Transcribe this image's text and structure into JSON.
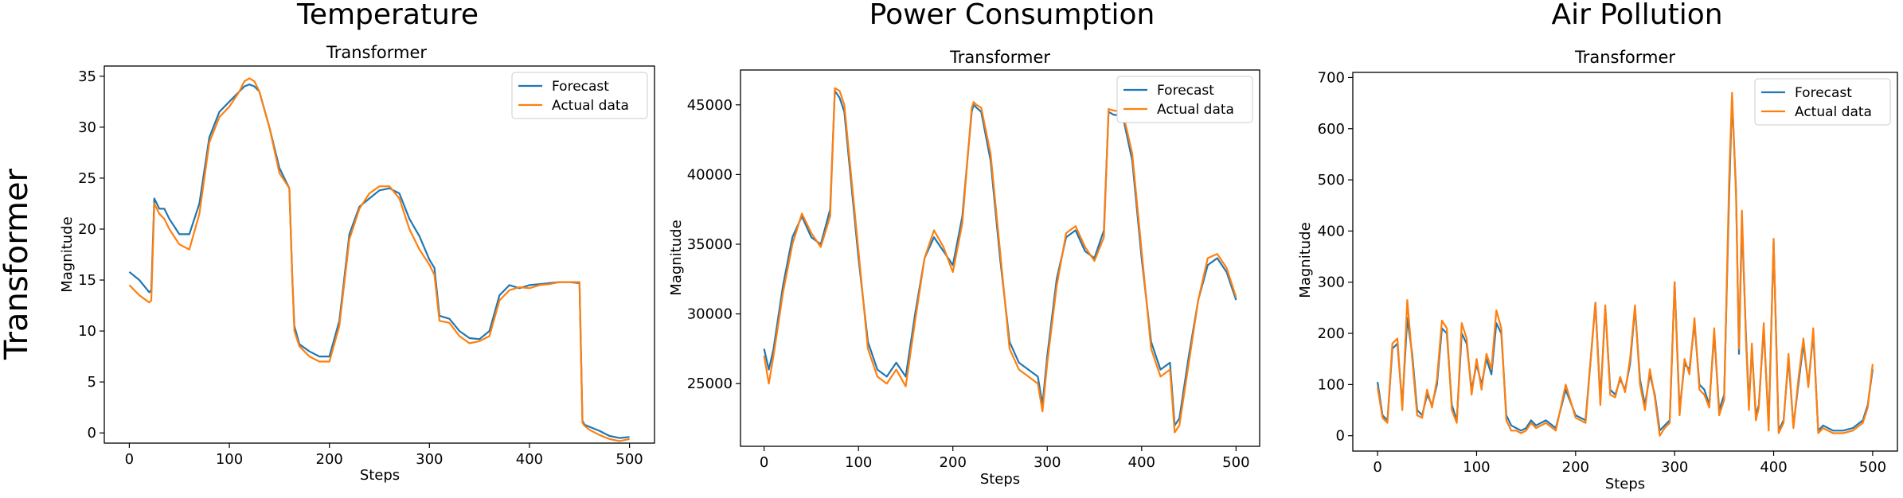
{
  "figure": {
    "row_label": "Transformer"
  },
  "colors": {
    "forecast": "#1f77b4",
    "actual": "#ff7f0e",
    "axes": "#000000",
    "background": "#ffffff"
  },
  "chart_data": [
    {
      "type": "line",
      "heading": "Temperature",
      "title": "Transformer",
      "xlabel": "Steps",
      "ylabel": "Magnitude",
      "xlim": [
        -25,
        525
      ],
      "ylim": [
        -1,
        36
      ],
      "xticks": [
        0,
        100,
        200,
        300,
        400,
        500
      ],
      "yticks": [
        0,
        5,
        10,
        15,
        20,
        25,
        30,
        35
      ],
      "grid": false,
      "legend": "top-right",
      "series": [
        {
          "name": "Forecast",
          "color": "#1f77b4",
          "x": [
            0,
            10,
            20,
            22,
            25,
            30,
            35,
            40,
            50,
            60,
            70,
            80,
            90,
            100,
            110,
            115,
            120,
            125,
            130,
            140,
            150,
            160,
            163,
            165,
            170,
            180,
            190,
            200,
            210,
            220,
            230,
            240,
            250,
            260,
            270,
            280,
            290,
            300,
            305,
            310,
            320,
            330,
            340,
            350,
            360,
            370,
            380,
            390,
            400,
            410,
            420,
            430,
            440,
            450,
            453,
            455,
            460,
            470,
            480,
            490,
            500
          ],
          "y": [
            15.8,
            15,
            13.8,
            14,
            23,
            22,
            22,
            21,
            19.5,
            19.5,
            22.5,
            29,
            31.5,
            32.5,
            33.5,
            34,
            34.2,
            34,
            33.5,
            30,
            26,
            24,
            15,
            10.5,
            8.7,
            8,
            7.5,
            7.5,
            11,
            19.5,
            22.2,
            23,
            23.8,
            24,
            23.5,
            21,
            19.3,
            17,
            16.2,
            11.5,
            11.2,
            10,
            9.3,
            9.2,
            10,
            13.5,
            14.5,
            14.2,
            14.5,
            14.6,
            14.7,
            14.8,
            14.8,
            14.7,
            1.2,
            0.8,
            0.6,
            0.2,
            -0.3,
            -0.5,
            -0.4
          ]
        },
        {
          "name": "Actual data",
          "color": "#ff7f0e",
          "x": [
            0,
            10,
            20,
            22,
            25,
            30,
            35,
            40,
            50,
            60,
            70,
            80,
            90,
            100,
            110,
            115,
            120,
            125,
            130,
            140,
            150,
            160,
            163,
            165,
            170,
            180,
            190,
            200,
            210,
            220,
            230,
            240,
            250,
            260,
            270,
            280,
            290,
            300,
            305,
            310,
            320,
            330,
            340,
            350,
            360,
            370,
            380,
            390,
            400,
            410,
            420,
            430,
            440,
            450,
            453,
            455,
            460,
            470,
            480,
            490,
            500
          ],
          "y": [
            14.5,
            13.5,
            12.8,
            13,
            22.5,
            21.5,
            21,
            20,
            18.5,
            18,
            21.5,
            28.5,
            31,
            32,
            33.5,
            34.5,
            34.8,
            34.5,
            33.5,
            30,
            25.5,
            24,
            15,
            10,
            8.5,
            7.5,
            7,
            7,
            10.5,
            19,
            22,
            23.5,
            24.2,
            24.2,
            23,
            20,
            18,
            16.5,
            15.5,
            11,
            10.8,
            9.5,
            8.8,
            9,
            9.5,
            13,
            14,
            14.3,
            14.2,
            14.5,
            14.6,
            14.8,
            14.8,
            14.8,
            1,
            0.7,
            0.3,
            -0.2,
            -0.6,
            -0.8,
            -0.6
          ]
        }
      ]
    },
    {
      "type": "line",
      "heading": "Power Consumption",
      "title": "Transformer",
      "xlabel": "Steps",
      "ylabel": "Magnitude",
      "xlim": [
        -25,
        525
      ],
      "ylim": [
        20500,
        47500
      ],
      "xticks": [
        0,
        100,
        200,
        300,
        400,
        500
      ],
      "yticks": [
        25000,
        30000,
        35000,
        40000,
        45000
      ],
      "grid": false,
      "legend": "top-right",
      "series": [
        {
          "name": "Forecast",
          "color": "#1f77b4",
          "x": [
            0,
            5,
            10,
            20,
            30,
            40,
            50,
            60,
            70,
            75,
            80,
            85,
            90,
            100,
            110,
            120,
            130,
            140,
            150,
            160,
            170,
            180,
            190,
            200,
            210,
            220,
            222,
            225,
            230,
            240,
            250,
            260,
            270,
            280,
            290,
            295,
            300,
            310,
            320,
            330,
            340,
            350,
            360,
            365,
            370,
            380,
            390,
            400,
            410,
            420,
            430,
            435,
            440,
            450,
            460,
            470,
            480,
            490,
            500
          ],
          "y": [
            27500,
            26000,
            27500,
            32000,
            35500,
            37000,
            35500,
            35000,
            37500,
            46000,
            45500,
            44500,
            41000,
            34000,
            28000,
            26000,
            25500,
            26500,
            25500,
            30000,
            34000,
            35500,
            34500,
            33500,
            37000,
            44500,
            45000,
            44800,
            44500,
            41000,
            34000,
            28000,
            26500,
            26000,
            25500,
            23500,
            27000,
            32500,
            35500,
            36000,
            34500,
            34000,
            36000,
            44500,
            44300,
            44200,
            41000,
            34000,
            28000,
            26000,
            26500,
            22000,
            22500,
            27000,
            31000,
            33500,
            34000,
            33000,
            31000
          ]
        },
        {
          "name": "Actual data",
          "color": "#ff7f0e",
          "x": [
            0,
            5,
            10,
            20,
            30,
            40,
            50,
            60,
            70,
            75,
            80,
            85,
            90,
            100,
            110,
            120,
            130,
            140,
            150,
            160,
            170,
            180,
            190,
            200,
            210,
            220,
            222,
            225,
            230,
            240,
            250,
            260,
            270,
            280,
            290,
            295,
            300,
            310,
            320,
            330,
            340,
            350,
            360,
            365,
            370,
            380,
            390,
            400,
            410,
            420,
            430,
            435,
            440,
            450,
            460,
            470,
            480,
            490,
            500
          ],
          "y": [
            27000,
            25000,
            27000,
            31500,
            35000,
            37200,
            35800,
            34800,
            37000,
            46200,
            46000,
            45000,
            41500,
            34500,
            27500,
            25500,
            25000,
            26000,
            24800,
            29500,
            34000,
            36000,
            34800,
            33000,
            36500,
            44800,
            45200,
            45000,
            44800,
            41500,
            34500,
            27500,
            26000,
            25500,
            25000,
            23000,
            26500,
            32000,
            35800,
            36300,
            34800,
            33800,
            35500,
            44700,
            44600,
            44500,
            41500,
            34500,
            27500,
            25500,
            26000,
            21500,
            22000,
            26500,
            31000,
            34000,
            34300,
            33300,
            31200
          ]
        }
      ]
    },
    {
      "type": "line",
      "heading": "Air Pollution",
      "title": "Transformer",
      "xlabel": "Steps",
      "ylabel": "Magnitude",
      "xlim": [
        -25,
        525
      ],
      "ylim": [
        -30,
        710
      ],
      "xticks": [
        0,
        100,
        200,
        300,
        400,
        500
      ],
      "yticks": [
        0,
        100,
        200,
        300,
        400,
        500,
        600,
        700
      ],
      "grid": false,
      "legend": "top-right",
      "series": [
        {
          "name": "Forecast",
          "color": "#1f77b4",
          "x": [
            0,
            5,
            10,
            15,
            20,
            25,
            30,
            35,
            40,
            45,
            50,
            55,
            60,
            65,
            70,
            75,
            80,
            85,
            90,
            95,
            100,
            105,
            110,
            115,
            120,
            125,
            130,
            135,
            140,
            145,
            150,
            155,
            160,
            170,
            180,
            190,
            200,
            210,
            220,
            225,
            230,
            235,
            240,
            245,
            250,
            255,
            260,
            265,
            270,
            275,
            280,
            285,
            290,
            295,
            300,
            305,
            310,
            315,
            320,
            325,
            330,
            335,
            340,
            345,
            350,
            355,
            358,
            362,
            365,
            368,
            372,
            375,
            378,
            382,
            385,
            390,
            395,
            400,
            405,
            410,
            415,
            420,
            425,
            430,
            435,
            440,
            445,
            450,
            460,
            470,
            480,
            490,
            495,
            500
          ],
          "y": [
            105,
            40,
            30,
            170,
            180,
            60,
            230,
            160,
            50,
            40,
            80,
            60,
            100,
            210,
            200,
            60,
            30,
            200,
            180,
            90,
            140,
            100,
            150,
            120,
            220,
            200,
            40,
            20,
            15,
            10,
            15,
            30,
            20,
            30,
            15,
            90,
            40,
            30,
            260,
            70,
            250,
            90,
            80,
            110,
            90,
            140,
            250,
            110,
            60,
            120,
            80,
            10,
            20,
            30,
            300,
            50,
            140,
            130,
            220,
            100,
            90,
            60,
            200,
            50,
            80,
            470,
            660,
            480,
            160,
            420,
            200,
            60,
            170,
            40,
            60,
            210,
            20,
            380,
            10,
            30,
            150,
            20,
            100,
            180,
            100,
            200,
            10,
            20,
            10,
            10,
            15,
            30,
            60,
            130
          ]
        },
        {
          "name": "Actual data",
          "color": "#ff7f0e",
          "x": [
            0,
            5,
            10,
            15,
            20,
            25,
            30,
            35,
            40,
            45,
            50,
            55,
            60,
            65,
            70,
            75,
            80,
            85,
            90,
            95,
            100,
            105,
            110,
            115,
            120,
            125,
            130,
            135,
            140,
            145,
            150,
            155,
            160,
            170,
            180,
            190,
            200,
            210,
            220,
            225,
            230,
            235,
            240,
            245,
            250,
            255,
            260,
            265,
            270,
            275,
            280,
            285,
            290,
            295,
            300,
            305,
            310,
            315,
            320,
            325,
            330,
            335,
            340,
            345,
            350,
            355,
            358,
            362,
            365,
            368,
            372,
            375,
            378,
            382,
            385,
            390,
            395,
            400,
            405,
            410,
            415,
            420,
            425,
            430,
            435,
            440,
            445,
            450,
            460,
            470,
            480,
            490,
            495,
            500
          ],
          "y": [
            95,
            35,
            25,
            180,
            190,
            50,
            265,
            150,
            40,
            35,
            90,
            55,
            110,
            225,
            210,
            50,
            25,
            220,
            190,
            80,
            150,
            90,
            160,
            130,
            245,
            210,
            30,
            10,
            10,
            5,
            10,
            25,
            15,
            25,
            10,
            100,
            35,
            25,
            260,
            60,
            255,
            80,
            75,
            115,
            85,
            150,
            255,
            100,
            50,
            130,
            75,
            0,
            15,
            25,
            300,
            40,
            150,
            120,
            230,
            90,
            80,
            55,
            210,
            40,
            70,
            500,
            670,
            470,
            170,
            440,
            190,
            50,
            180,
            30,
            55,
            220,
            10,
            385,
            5,
            25,
            160,
            15,
            110,
            190,
            95,
            210,
            5,
            15,
            5,
            5,
            10,
            25,
            55,
            140
          ]
        }
      ]
    }
  ]
}
